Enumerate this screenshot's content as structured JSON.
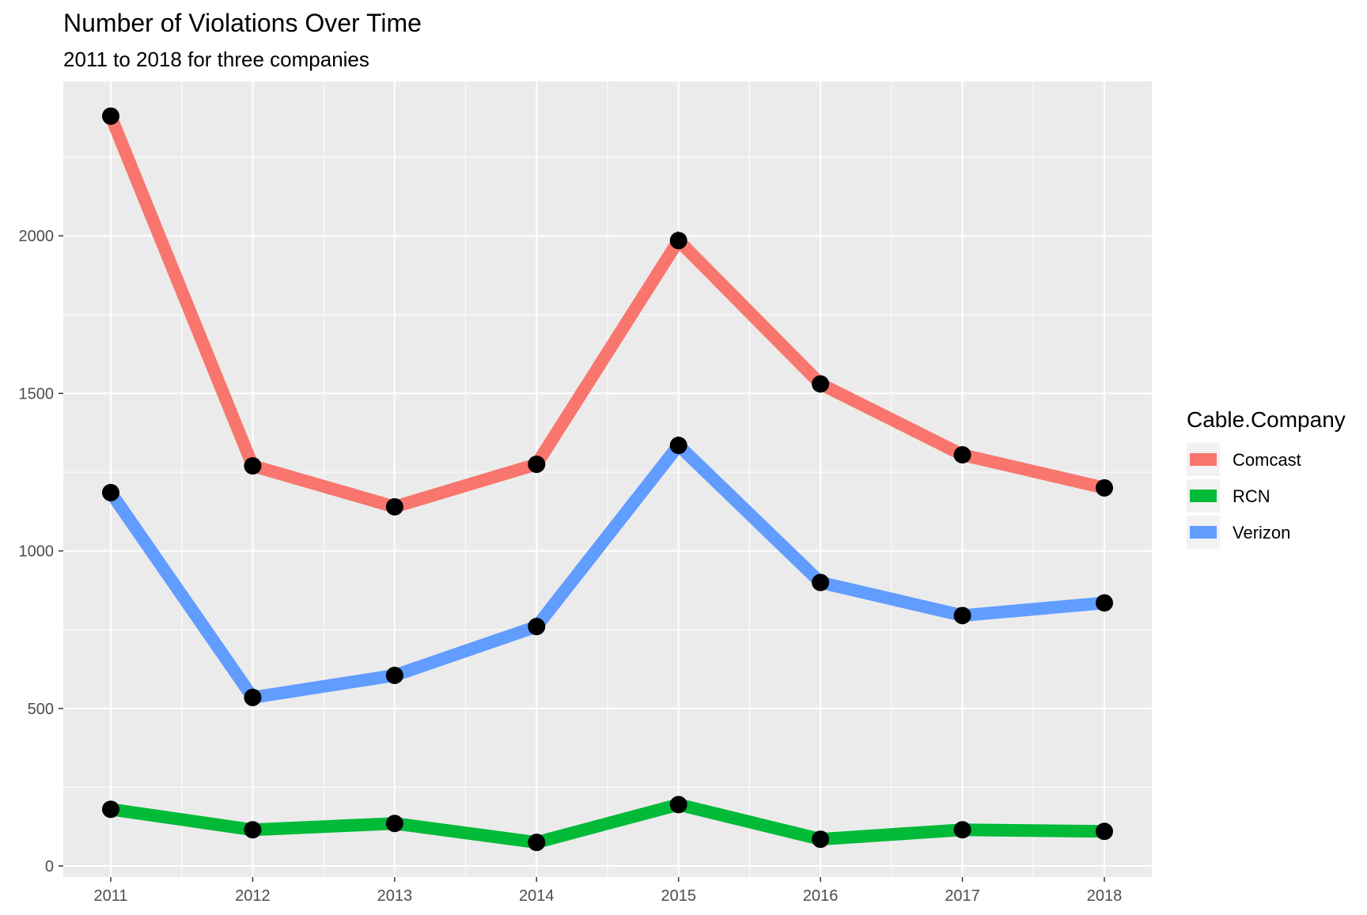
{
  "chart_data": {
    "type": "line",
    "title": "Number of Violations Over Time",
    "subtitle": "2011 to 2018 for three companies",
    "xlabel": "",
    "ylabel": "",
    "x": [
      "2011",
      "2012",
      "2013",
      "2014",
      "2015",
      "2016",
      "2017",
      "2018"
    ],
    "ylim": [
      -35,
      2490
    ],
    "yticks": [
      0,
      500,
      1000,
      1500,
      2000
    ],
    "grid": true,
    "legend": {
      "title": "Cable.Company",
      "placement": "right"
    },
    "series": [
      {
        "name": "Comcast",
        "color": "#F8766D",
        "values": [
          2380,
          1270,
          1140,
          1275,
          1985,
          1530,
          1305,
          1200
        ]
      },
      {
        "name": "RCN",
        "color": "#00BA38",
        "values": [
          180,
          115,
          135,
          75,
          195,
          85,
          115,
          110
        ]
      },
      {
        "name": "Verizon",
        "color": "#619CFF",
        "values": [
          1185,
          535,
          605,
          760,
          1335,
          900,
          795,
          835
        ]
      }
    ],
    "point_color": "#000000",
    "panel_background": "#EBEBEB"
  }
}
